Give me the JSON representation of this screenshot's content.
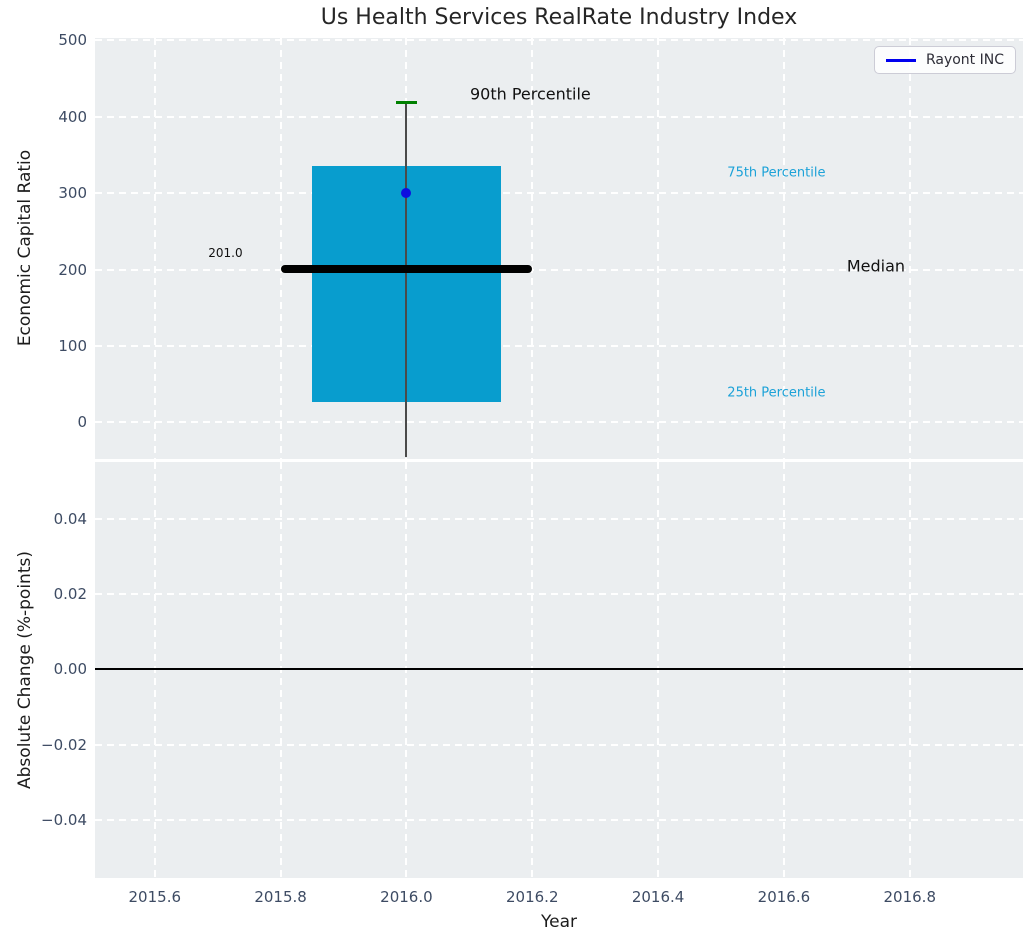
{
  "title": "Us Health Services RealRate Industry Index",
  "legend": {
    "label": "Rayont INC"
  },
  "colors": {
    "axes_bg": "#ebeef0",
    "grid": "#ffffff",
    "box_fill": "#089dce",
    "median_line": "#000000",
    "mean_dot": "#0e0ee0",
    "p90_cap": "#008000",
    "whisker": "#4a4a4a",
    "zero_line": "#000000",
    "tick_label": "#3d4b63",
    "annotation_cyan": "#1da2d8",
    "annotation_dark": "#111111",
    "legend_line": "#0000ee"
  },
  "chart_data": [
    {
      "type": "boxplot",
      "title": "Us Health Services RealRate Industry Index",
      "ylabel": "Economic Capital Ratio",
      "series_name": "Rayont INC",
      "xlim": [
        2015.505,
        2016.98
      ],
      "ylim": [
        -48,
        503
      ],
      "grid": true,
      "yticks": {
        "values": [
          0,
          100,
          200,
          300,
          400,
          500
        ],
        "labels": [
          "0",
          "100",
          "200",
          "300",
          "400",
          "500"
        ]
      },
      "xticks": {
        "values": [
          2015.6,
          2015.8,
          2016.0,
          2016.2,
          2016.4,
          2016.6,
          2016.8
        ],
        "labels": []
      },
      "box": {
        "x_center": 2016.0,
        "box_left": 2015.85,
        "box_right": 2016.15,
        "q1": 27,
        "median": 201,
        "q3": 335,
        "mean": 300,
        "p90": 418,
        "whisker_low": -46,
        "median_line_left": 2015.8,
        "median_line_right": 2016.2,
        "cap_halfwidth": 0.017
      },
      "annotations": [
        {
          "id": "median-value-label",
          "text": "201.0",
          "x": 2015.685,
          "y": 221,
          "color": "dark",
          "size": 12
        },
        {
          "id": "p90-label",
          "text": "90th Percentile",
          "x": 2016.101,
          "y": 430,
          "color": "dark",
          "size": 16
        },
        {
          "id": "p75-label",
          "text": "75th Percentile",
          "x": 2016.51,
          "y": 326,
          "color": "cyan",
          "size": 13
        },
        {
          "id": "median-label",
          "text": "Median",
          "x": 2016.7,
          "y": 204,
          "color": "dark",
          "size": 16
        },
        {
          "id": "p25-label",
          "text": "25th Percentile",
          "x": 2016.51,
          "y": 38,
          "color": "cyan",
          "size": 13
        }
      ]
    },
    {
      "type": "line",
      "xlabel": "Year",
      "ylabel": "Absolute Change (%-points)",
      "xlim": [
        2015.505,
        2016.98
      ],
      "ylim": [
        -0.0555,
        0.0552
      ],
      "grid": true,
      "zero_line": 0,
      "series": [
        {
          "name": "Rayont INC",
          "x": [],
          "y": []
        }
      ],
      "yticks": {
        "values": [
          0.04,
          0.02,
          0,
          -0.02,
          -0.04
        ],
        "labels": [
          "0.04",
          "0.02",
          "0.00",
          "−0.02",
          "−0.04"
        ]
      },
      "xticks": {
        "values": [
          2015.6,
          2015.8,
          2016.0,
          2016.2,
          2016.4,
          2016.6,
          2016.8
        ],
        "labels": [
          "2015.6",
          "2015.8",
          "2016.0",
          "2016.2",
          "2016.4",
          "2016.6",
          "2016.8"
        ]
      }
    }
  ]
}
